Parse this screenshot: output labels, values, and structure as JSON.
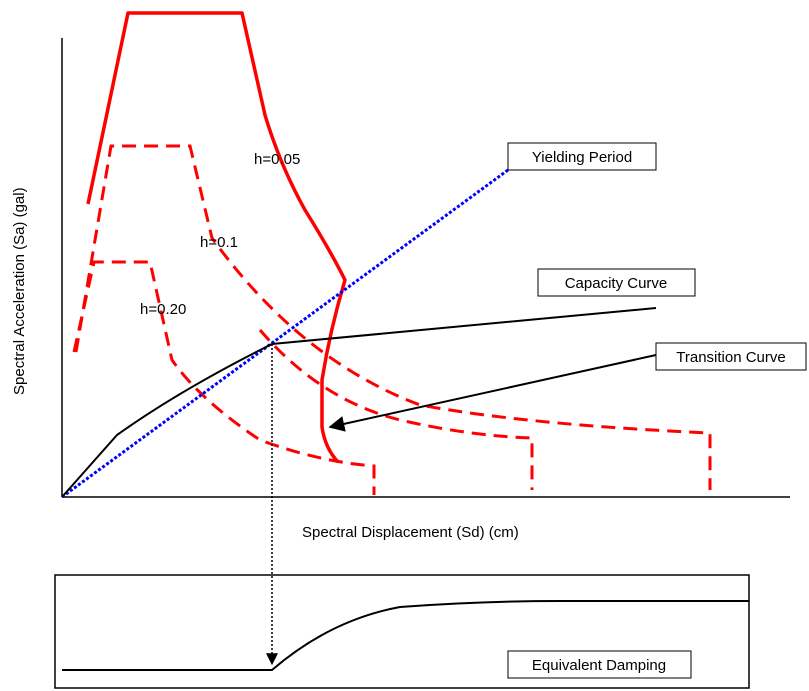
{
  "upper_plot": {
    "xlabel": "Spectral Displacement (Sd)    (cm)",
    "ylabel": "Spectral Acceleration (Sa)    (gal)",
    "callouts": {
      "yielding_period": "Yielding Period",
      "capacity_curve": "Capacity Curve",
      "transition_curve": "Transition Curve"
    },
    "damping_labels": {
      "h005": "h=0.05",
      "h01": "h=0.1",
      "h020": "h=0.20"
    }
  },
  "lower_plot": {
    "label": "Equivalent Damping"
  },
  "colors": {
    "demand_spectra": "#ff0000",
    "yielding_period_line": "#0000ff",
    "capacity_curve": "#000000",
    "axes": "#000000"
  }
}
